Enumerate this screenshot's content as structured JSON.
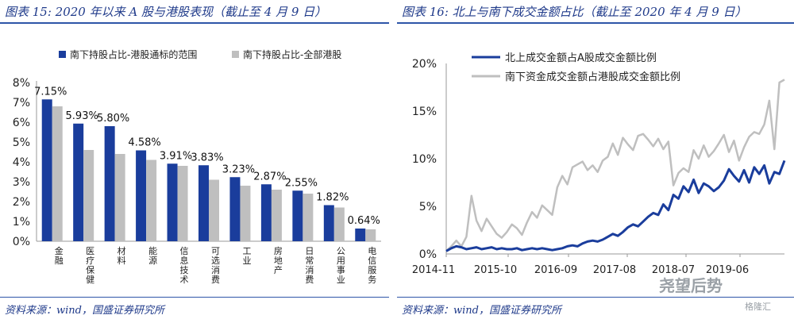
{
  "left": {
    "title": "图表 15:  2020 年以来 A 股与港股表现（截止至 4 月 9 日）",
    "source": "资料来源：wind，国盛证券研究所",
    "chart_data": {
      "type": "bar",
      "categories": [
        "金融",
        "医疗保健",
        "材料",
        "能源",
        "信息技术",
        "可选消费",
        "工业",
        "房地产",
        "日常消费",
        "公用事业",
        "电信服务"
      ],
      "series": [
        {
          "name": "南下持股占比-港股通标的范围",
          "color": "#1a3d9c",
          "values": [
            7.15,
            5.93,
            5.8,
            4.58,
            3.91,
            3.83,
            3.23,
            2.87,
            2.55,
            1.82,
            0.64
          ]
        },
        {
          "name": "南下持股占比-全部港股",
          "color": "#bfbfbf",
          "values": [
            6.8,
            4.6,
            4.4,
            4.1,
            3.8,
            3.1,
            2.8,
            2.6,
            2.4,
            1.7,
            0.6
          ]
        }
      ],
      "data_labels": [
        "7.15%",
        "5.93%",
        "5.80%",
        "4.58%",
        "3.91%",
        "3.83%",
        "3.23%",
        "2.87%",
        "2.55%",
        "1.82%",
        "0.64%"
      ],
      "yticks": [
        "0%",
        "1%",
        "2%",
        "3%",
        "4%",
        "5%",
        "6%",
        "7%",
        "8%"
      ],
      "ylim": [
        0,
        8
      ]
    }
  },
  "right": {
    "title": "图表 16:  北上与南下成交金额占比（截止至 2020 年 4 月 9 日）",
    "source": "资料来源：wind，国盛证券研究所",
    "watermark": "尧望后势",
    "watermark_credit": "格隆汇",
    "chart_data": {
      "type": "line",
      "xticks": [
        "2014-11",
        "2015-10",
        "2016-09",
        "2017-08",
        "2018-07",
        "2019-06"
      ],
      "yticks": [
        "0%",
        "5%",
        "10%",
        "15%",
        "20%"
      ],
      "ylim": [
        0,
        20
      ],
      "series": [
        {
          "name": "北上成交金额占A股成交金额比例",
          "color": "#1a3d9c",
          "values": [
            0.3,
            0.6,
            0.8,
            0.7,
            0.5,
            0.6,
            0.7,
            0.5,
            0.6,
            0.7,
            0.5,
            0.6,
            0.5,
            0.5,
            0.6,
            0.4,
            0.5,
            0.6,
            0.5,
            0.6,
            0.5,
            0.4,
            0.5,
            0.6,
            0.8,
            0.9,
            0.8,
            1.1,
            1.3,
            1.4,
            1.3,
            1.5,
            1.8,
            2.1,
            1.9,
            2.3,
            2.8,
            3.1,
            2.9,
            3.4,
            3.9,
            4.3,
            4.1,
            5.2,
            4.6,
            6.2,
            5.8,
            7.1,
            6.5,
            7.8,
            6.4,
            7.4,
            7.1,
            6.6,
            7.0,
            7.7,
            8.9,
            8.2,
            7.6,
            8.8,
            7.5,
            9.1,
            8.4,
            9.3,
            7.4,
            8.6,
            8.4,
            9.8
          ]
        },
        {
          "name": "南下资金成交金额占港股成交金额比例",
          "color": "#bfbfbf",
          "values": [
            0.3,
            0.8,
            1.4,
            0.8,
            1.8,
            6.1,
            3.5,
            2.4,
            3.7,
            2.9,
            2.1,
            1.7,
            2.3,
            3.1,
            2.7,
            2.0,
            3.3,
            4.4,
            3.8,
            5.1,
            4.6,
            4.1,
            7.0,
            8.2,
            7.3,
            9.1,
            9.4,
            9.7,
            8.8,
            9.3,
            8.6,
            9.8,
            10.2,
            11.6,
            10.4,
            12.2,
            11.5,
            10.9,
            12.4,
            12.6,
            12.0,
            11.3,
            12.1,
            11.0,
            11.8,
            7.2,
            8.5,
            9.0,
            8.6,
            10.9,
            10.0,
            11.4,
            10.2,
            10.8,
            11.6,
            12.5,
            10.7,
            11.9,
            9.8,
            11.2,
            12.3,
            12.8,
            12.6,
            13.6,
            16.1,
            11.0,
            18.0,
            18.3
          ]
        }
      ]
    }
  }
}
